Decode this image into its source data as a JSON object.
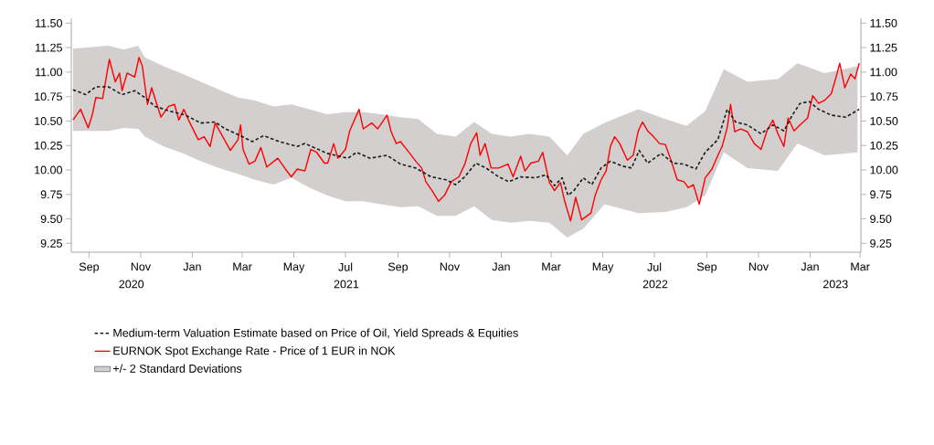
{
  "chart_data": {
    "type": "line",
    "xlim": [
      "2020-08-11",
      "2023-03-02"
    ],
    "xticks": [
      {
        "value": "2020-09-01",
        "label": "Sep"
      },
      {
        "value": "2020-11-01",
        "label": "Nov"
      },
      {
        "value": "2021-01-01",
        "label": "Jan"
      },
      {
        "value": "2021-03-01",
        "label": "Mar"
      },
      {
        "value": "2021-05-01",
        "label": "May"
      },
      {
        "value": "2021-07-01",
        "label": "Jul"
      },
      {
        "value": "2021-09-01",
        "label": "Sep"
      },
      {
        "value": "2021-11-01",
        "label": "Nov"
      },
      {
        "value": "2022-01-01",
        "label": "Jan"
      },
      {
        "value": "2022-03-01",
        "label": "Mar"
      },
      {
        "value": "2022-05-01",
        "label": "May"
      },
      {
        "value": "2022-07-01",
        "label": "Jul"
      },
      {
        "value": "2022-09-01",
        "label": "Sep"
      },
      {
        "value": "2022-11-01",
        "label": "Nov"
      },
      {
        "value": "2023-01-01",
        "label": "Jan"
      },
      {
        "value": "2023-03-01",
        "label": "Mar"
      }
    ],
    "annotations": [
      "2020",
      "2021",
      "2022",
      "2023"
    ],
    "ylim": [
      9.16,
      11.55
    ],
    "yticks": [
      {
        "value": 9.25,
        "label": "9.25"
      },
      {
        "value": 9.5,
        "label": "9.50"
      },
      {
        "value": 9.75,
        "label": "9.75"
      },
      {
        "value": 10.0,
        "label": "10.00"
      },
      {
        "value": 10.25,
        "label": "10.25"
      },
      {
        "value": 10.5,
        "label": "10.50"
      },
      {
        "value": 10.75,
        "label": "10.75"
      },
      {
        "value": 11.0,
        "label": "11.00"
      },
      {
        "value": 11.25,
        "label": "11.25"
      },
      {
        "value": 11.5,
        "label": "11.50"
      }
    ],
    "y2lim": [
      9.16,
      11.55
    ],
    "y2ticks": [
      {
        "value": 9.25,
        "label": "9.25"
      },
      {
        "value": 9.5,
        "label": "9.50"
      },
      {
        "value": 9.75,
        "label": "9.75"
      },
      {
        "value": 10.0,
        "label": "10.00"
      },
      {
        "value": 10.25,
        "label": "10.25"
      },
      {
        "value": 10.5,
        "label": "10.50"
      },
      {
        "value": 10.75,
        "label": "10.75"
      },
      {
        "value": 11.0,
        "label": "11.00"
      },
      {
        "value": 11.25,
        "label": "11.25"
      },
      {
        "value": 11.5,
        "label": "11.50"
      }
    ],
    "legend": "bottom",
    "series": [
      {
        "name": "Medium-term Valuation Estimate based on Price of Oil, Yield Spreads & Equities",
        "color": "#1a1a1a",
        "line_style": "dashed",
        "x": [
          "2020-08-13",
          "2020-08-28",
          "2020-09-09",
          "2020-09-24",
          "2020-10-10",
          "2020-10-25",
          "2020-11-06",
          "2020-11-18",
          "2020-12-06",
          "2020-12-24",
          "2021-01-11",
          "2021-01-28",
          "2021-02-09",
          "2021-02-27",
          "2021-03-13",
          "2021-03-26",
          "2021-04-14",
          "2021-05-05",
          "2021-05-14",
          "2021-05-30",
          "2021-06-09",
          "2021-06-24",
          "2021-07-04",
          "2021-07-14",
          "2021-07-30",
          "2021-08-19",
          "2021-09-04",
          "2021-09-22",
          "2021-10-10",
          "2021-10-28",
          "2021-11-08",
          "2021-11-19",
          "2021-12-02",
          "2021-12-14",
          "2021-12-29",
          "2022-01-10",
          "2022-01-24",
          "2022-02-10",
          "2022-02-23",
          "2022-03-05",
          "2022-03-14",
          "2022-03-21",
          "2022-03-28",
          "2022-04-08",
          "2022-04-18",
          "2022-04-29",
          "2022-05-10",
          "2022-05-24",
          "2022-06-04",
          "2022-06-13",
          "2022-06-23",
          "2022-07-09",
          "2022-07-23",
          "2022-08-05",
          "2022-08-19",
          "2022-08-30",
          "2022-09-14",
          "2022-09-25",
          "2022-10-05",
          "2022-10-19",
          "2022-11-04",
          "2022-11-18",
          "2022-12-01",
          "2022-12-11",
          "2022-12-20",
          "2022-12-31",
          "2023-01-11",
          "2023-01-26",
          "2023-02-12",
          "2023-02-28"
        ],
        "values": [
          10.82,
          10.77,
          10.85,
          10.85,
          10.77,
          10.81,
          10.74,
          10.65,
          10.6,
          10.56,
          10.48,
          10.49,
          10.42,
          10.35,
          10.29,
          10.35,
          10.29,
          10.24,
          10.27,
          10.21,
          10.17,
          10.14,
          10.12,
          10.18,
          10.12,
          10.15,
          10.06,
          10.02,
          9.93,
          9.9,
          9.85,
          9.93,
          10.07,
          10.02,
          9.93,
          9.88,
          9.93,
          9.92,
          9.95,
          9.84,
          9.92,
          9.74,
          9.79,
          9.92,
          9.85,
          10.02,
          10.09,
          10.04,
          10.02,
          10.2,
          10.07,
          10.17,
          10.07,
          10.06,
          10.01,
          10.18,
          10.31,
          10.62,
          10.49,
          10.46,
          10.37,
          10.46,
          10.4,
          10.56,
          10.68,
          10.7,
          10.62,
          10.56,
          10.54,
          10.62
        ]
      },
      {
        "name": "EURNOK Spot Exchange Rate - Price of 1 EUR in NOK",
        "color": "#ff0000",
        "line_style": "solid",
        "x": [
          "2020-08-13",
          "2020-08-22",
          "2020-08-31",
          "2020-09-05",
          "2020-09-09",
          "2020-09-17",
          "2020-09-21",
          "2020-09-25",
          "2020-10-02",
          "2020-10-07",
          "2020-10-10",
          "2020-10-16",
          "2020-10-25",
          "2020-10-30",
          "2020-11-03",
          "2020-11-09",
          "2020-11-14",
          "2020-11-19",
          "2020-11-25",
          "2020-12-04",
          "2020-12-11",
          "2020-12-16",
          "2020-12-22",
          "2020-12-27",
          "2021-01-08",
          "2021-01-15",
          "2021-01-22",
          "2021-01-28",
          "2021-02-06",
          "2021-02-15",
          "2021-02-24",
          "2021-02-27",
          "2021-03-02",
          "2021-03-09",
          "2021-03-16",
          "2021-03-23",
          "2021-03-30",
          "2021-04-12",
          "2021-04-21",
          "2021-04-28",
          "2021-05-05",
          "2021-05-14",
          "2021-05-21",
          "2021-05-28",
          "2021-06-06",
          "2021-06-10",
          "2021-06-17",
          "2021-06-22",
          "2021-07-01",
          "2021-07-06",
          "2021-07-17",
          "2021-07-22",
          "2021-08-01",
          "2021-08-08",
          "2021-08-19",
          "2021-08-24",
          "2021-08-30",
          "2021-09-04",
          "2021-09-15",
          "2021-09-22",
          "2021-09-29",
          "2021-10-04",
          "2021-10-12",
          "2021-10-19",
          "2021-10-26",
          "2021-11-03",
          "2021-11-12",
          "2021-11-19",
          "2021-11-26",
          "2021-12-03",
          "2021-12-07",
          "2021-12-13",
          "2021-12-20",
          "2021-12-29",
          "2022-01-09",
          "2022-01-15",
          "2022-01-24",
          "2022-01-29",
          "2022-02-05",
          "2022-02-14",
          "2022-02-19",
          "2022-02-27",
          "2022-03-05",
          "2022-03-12",
          "2022-03-17",
          "2022-03-24",
          "2022-03-30",
          "2022-04-04",
          "2022-04-06",
          "2022-04-17",
          "2022-04-22",
          "2022-04-29",
          "2022-05-05",
          "2022-05-10",
          "2022-05-15",
          "2022-05-21",
          "2022-05-30",
          "2022-06-06",
          "2022-06-12",
          "2022-06-17",
          "2022-06-23",
          "2022-06-30",
          "2022-07-07",
          "2022-07-14",
          "2022-07-21",
          "2022-07-28",
          "2022-08-05",
          "2022-08-10",
          "2022-08-16",
          "2022-08-23",
          "2022-08-30",
          "2022-09-07",
          "2022-09-14",
          "2022-09-19",
          "2022-09-25",
          "2022-09-29",
          "2022-10-04",
          "2022-10-11",
          "2022-10-19",
          "2022-10-27",
          "2022-11-04",
          "2022-11-11",
          "2022-11-18",
          "2022-11-24",
          "2022-12-01",
          "2022-12-06",
          "2022-12-13",
          "2022-12-20",
          "2022-12-29",
          "2023-01-04",
          "2023-01-11",
          "2023-01-18",
          "2023-01-26",
          "2023-02-01",
          "2023-02-05",
          "2023-02-11",
          "2023-02-18",
          "2023-02-23",
          "2023-02-28"
        ],
        "values": [
          10.51,
          10.62,
          10.43,
          10.57,
          10.74,
          10.73,
          10.93,
          11.13,
          10.9,
          10.99,
          10.81,
          10.99,
          10.95,
          11.15,
          11.06,
          10.67,
          10.84,
          10.7,
          10.54,
          10.65,
          10.67,
          10.51,
          10.62,
          10.52,
          10.31,
          10.34,
          10.24,
          10.48,
          10.34,
          10.2,
          10.31,
          10.46,
          10.21,
          10.06,
          10.09,
          10.23,
          10.03,
          10.12,
          10.01,
          9.93,
          10.01,
          9.99,
          10.21,
          10.18,
          10.07,
          10.07,
          10.27,
          10.12,
          10.21,
          10.4,
          10.62,
          10.42,
          10.48,
          10.42,
          10.56,
          10.39,
          10.27,
          10.29,
          10.17,
          10.09,
          10.02,
          9.88,
          9.78,
          9.68,
          9.74,
          9.88,
          9.93,
          10.06,
          10.27,
          10.38,
          10.15,
          10.27,
          10.02,
          10.02,
          10.06,
          9.93,
          10.14,
          9.99,
          10.07,
          10.09,
          10.18,
          9.87,
          9.79,
          9.87,
          9.68,
          9.48,
          9.72,
          9.56,
          9.49,
          9.56,
          9.74,
          9.9,
          9.99,
          10.24,
          10.34,
          10.27,
          10.1,
          10.15,
          10.4,
          10.49,
          10.4,
          10.34,
          10.27,
          10.26,
          10.09,
          9.9,
          9.88,
          9.82,
          9.85,
          9.65,
          9.92,
          10.01,
          10.15,
          10.24,
          10.43,
          10.67,
          10.39,
          10.42,
          10.39,
          10.27,
          10.21,
          10.4,
          10.51,
          10.37,
          10.24,
          10.53,
          10.4,
          10.46,
          10.53,
          10.76,
          10.68,
          10.71,
          10.78,
          10.96,
          11.09,
          10.84,
          10.98,
          10.93,
          11.09
        ]
      },
      {
        "name": "+/- 2 Standard Deviations",
        "type": "area",
        "color": "#d3cfcf",
        "x": [
          "2020-08-13",
          "2020-09-24",
          "2020-10-12",
          "2020-10-29",
          "2020-11-06",
          "2020-11-28",
          "2020-12-21",
          "2021-01-11",
          "2021-02-02",
          "2021-02-24",
          "2021-03-16",
          "2021-04-07",
          "2021-04-28",
          "2021-05-19",
          "2021-06-09",
          "2021-07-01",
          "2021-07-22",
          "2021-08-12",
          "2021-09-04",
          "2021-09-25",
          "2021-10-17",
          "2021-11-08",
          "2021-11-30",
          "2021-12-21",
          "2022-01-12",
          "2022-02-03",
          "2022-02-27",
          "2022-03-20",
          "2022-04-08",
          "2022-05-03",
          "2022-06-12",
          "2022-07-14",
          "2022-08-08",
          "2022-08-30",
          "2022-09-21",
          "2022-10-19",
          "2022-11-24",
          "2022-12-17",
          "2023-01-18",
          "2023-02-26"
        ],
        "values": [
          null,
          null,
          null,
          null,
          null,
          null,
          null,
          null,
          null,
          null,
          null,
          null,
          null,
          null,
          null,
          null,
          null,
          null,
          null,
          null,
          null,
          null,
          null,
          null,
          null,
          null,
          null,
          null,
          null,
          null,
          null,
          null,
          null,
          null,
          null,
          null,
          null,
          null,
          null,
          null
        ],
        "upper": [
          11.24,
          11.27,
          11.23,
          11.27,
          11.15,
          11.06,
          10.98,
          10.9,
          10.82,
          10.74,
          10.71,
          10.65,
          10.67,
          10.62,
          10.57,
          10.59,
          10.59,
          10.57,
          10.54,
          10.52,
          10.37,
          10.34,
          10.49,
          10.37,
          10.34,
          10.37,
          10.34,
          10.15,
          10.37,
          10.48,
          10.62,
          10.52,
          10.45,
          10.6,
          11.03,
          10.9,
          10.93,
          11.09,
          10.99,
          11.06
        ],
        "lower": [
          10.4,
          10.4,
          10.43,
          10.42,
          10.34,
          10.24,
          10.17,
          10.09,
          10.02,
          9.96,
          9.9,
          9.85,
          9.92,
          9.82,
          9.74,
          9.68,
          9.68,
          9.65,
          9.62,
          9.63,
          9.53,
          9.53,
          9.63,
          9.49,
          9.46,
          9.48,
          9.46,
          9.31,
          9.4,
          9.65,
          9.56,
          9.57,
          9.62,
          9.74,
          10.18,
          10.02,
          9.99,
          10.27,
          10.15,
          10.18
        ]
      }
    ]
  }
}
